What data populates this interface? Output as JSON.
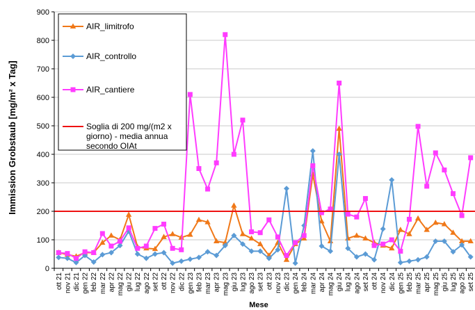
{
  "chart_data": {
    "type": "line",
    "xlabel": "Mese",
    "ylabel": "Immission Grobstaub [mg/m² x Tag]",
    "ylim": [
      0,
      900
    ],
    "yticks": [
      0,
      100,
      200,
      300,
      400,
      500,
      600,
      700,
      800,
      900
    ],
    "grid": "horizontal",
    "legend_position": "top-left",
    "categories": [
      "ott 21",
      "nov 21",
      "dic 21",
      "gen 22",
      "feb 22",
      "mar 22",
      "apr 22",
      "mag 22",
      "giu 22",
      "lug 22",
      "ago 22",
      "set 22",
      "ott 22",
      "nov 22",
      "dic 22",
      "gen 23",
      "feb 23",
      "mar 23",
      "apr 23",
      "mag 23",
      "giu 23",
      "lug 23",
      "ago 23",
      "set 23",
      "ott 23",
      "nov 23",
      "dic 23",
      "gen 24",
      "feb 24",
      "mar 24",
      "apr 24",
      "mag 24",
      "giu 24",
      "lug 24",
      "ago 24",
      "set 24",
      "ott 24",
      "nov 24",
      "dic 24",
      "gen 25",
      "feb 25",
      "mar 25",
      "apr 25",
      "mag 25",
      "giu 25",
      "lug 25",
      "ago 25",
      "set 25"
    ],
    "series": [
      {
        "name": "AIR_limitrofo",
        "color": "#f07818",
        "marker": "triangle",
        "values": [
          55,
          48,
          42,
          55,
          55,
          90,
          115,
          100,
          188,
          75,
          70,
          68,
          110,
          120,
          108,
          118,
          170,
          162,
          95,
          90,
          220,
          120,
          105,
          85,
          45,
          90,
          30,
          85,
          105,
          330,
          165,
          95,
          490,
          105,
          115,
          105,
          90,
          80,
          70,
          135,
          120,
          175,
          135,
          160,
          155,
          125,
          95,
          95
        ]
      },
      {
        "name": "AIR_controllo",
        "color": "#5b9bd5",
        "marker": "diamond",
        "values": [
          38,
          35,
          20,
          45,
          22,
          48,
          55,
          80,
          130,
          50,
          35,
          50,
          55,
          18,
          25,
          32,
          38,
          58,
          45,
          80,
          115,
          85,
          60,
          60,
          35,
          65,
          280,
          18,
          150,
          412,
          78,
          60,
          400,
          70,
          40,
          50,
          30,
          138,
          310,
          20,
          25,
          30,
          40,
          95,
          95,
          58,
          82,
          40
        ]
      },
      {
        "name": "AIR_cantiere",
        "color": "#ff3cff",
        "marker": "square",
        "values": [
          55,
          52,
          35,
          58,
          55,
          122,
          78,
          95,
          142,
          70,
          78,
          140,
          155,
          70,
          65,
          610,
          350,
          278,
          370,
          820,
          400,
          520,
          128,
          125,
          170,
          110,
          45,
          90,
          115,
          360,
          195,
          208,
          650,
          190,
          180,
          245,
          80,
          85,
          100,
          60,
          172,
          498,
          288,
          405,
          345,
          262,
          185,
          388
        ]
      },
      {
        "name": "Soglia di 200 mg/(m2 x giorno) - media annua secondo OIAt",
        "color": "#ee1111",
        "marker": "none",
        "constant": 200
      }
    ]
  },
  "legend": {
    "items": [
      {
        "label": "AIR_limitrofo"
      },
      {
        "label": "AIR_controllo"
      },
      {
        "label": "AIR_cantiere"
      },
      {
        "label_lines": [
          "Soglia di 200 mg/(m2 x",
          "giorno) - media annua",
          "secondo OIAt"
        ]
      }
    ]
  }
}
